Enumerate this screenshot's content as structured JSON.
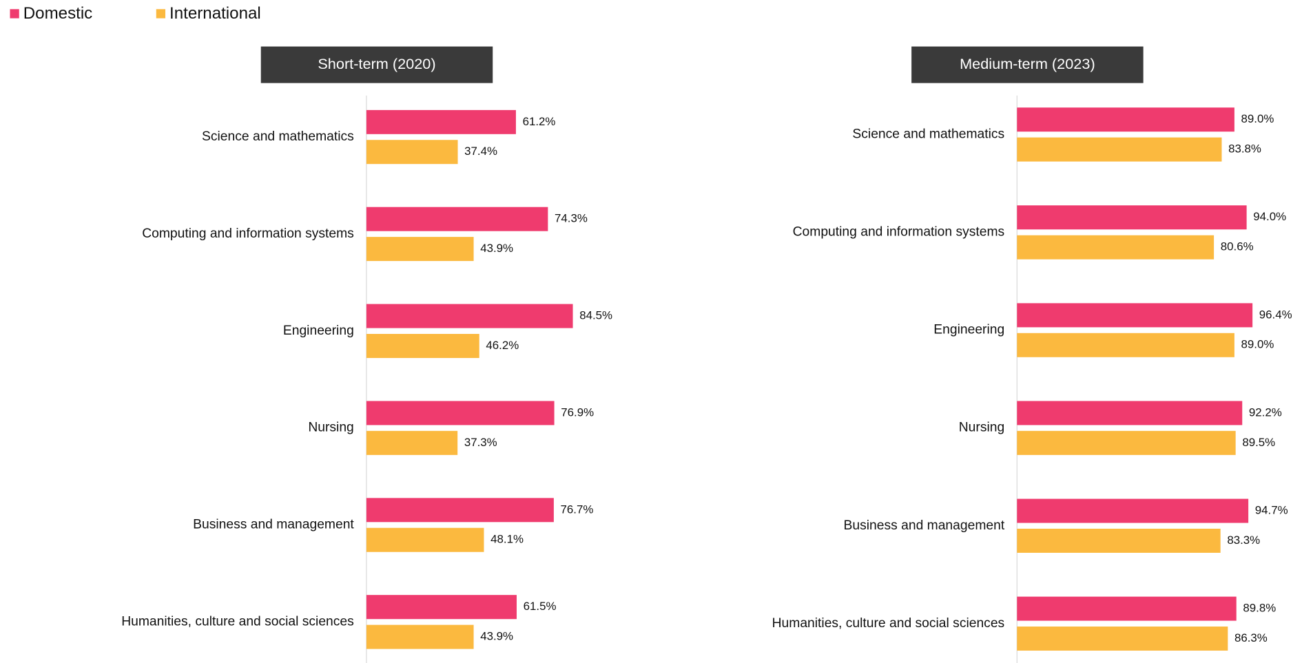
{
  "chart_data": [
    {
      "type": "bar",
      "orientation": "horizontal",
      "title": "Short-term (2020)",
      "categories": [
        "Science and mathematics",
        "Computing and information systems",
        "Engineering",
        "Nursing",
        "Business and management",
        "Humanities, culture and social sciences"
      ],
      "series": [
        {
          "name": "Domestic",
          "color": "#ef3b6e",
          "values": [
            61.2,
            74.3,
            84.5,
            76.9,
            76.7,
            61.5
          ],
          "value_labels": [
            "61.2%",
            "74.3%",
            "84.5%",
            "76.9%",
            "76.7%",
            "61.5%"
          ]
        },
        {
          "name": "International",
          "color": "#fbb93f",
          "values": [
            37.4,
            43.9,
            46.2,
            37.3,
            48.1,
            43.9
          ],
          "value_labels": [
            "37.4%",
            "43.9%",
            "46.2%",
            "37.3%",
            "48.1%",
            "43.9%"
          ]
        }
      ],
      "xlim": [
        0,
        100
      ]
    },
    {
      "type": "bar",
      "orientation": "horizontal",
      "title": "Medium-term (2023)",
      "categories": [
        "Science and mathematics",
        "Computing and information systems",
        "Engineering",
        "Nursing",
        "Business and management",
        "Humanities, culture and social sciences"
      ],
      "series": [
        {
          "color": "#ef3b6e",
          "values": [
            89.0,
            94.0,
            96.4,
            92.2,
            94.7,
            89.8
          ],
          "value_labels": [
            "89.0%",
            "94.0%",
            "96.4%",
            "92.2%",
            "94.7%",
            "89.8%"
          ]
        },
        {
          "color": "#fbb93f",
          "values": [
            83.8,
            80.6,
            89.0,
            89.5,
            83.3,
            86.3
          ],
          "value_labels": [
            "83.8%",
            "80.6%",
            "89.0%",
            "89.5%",
            "83.3%",
            "86.3%"
          ]
        }
      ],
      "xlim": [
        0,
        100
      ]
    }
  ]
}
